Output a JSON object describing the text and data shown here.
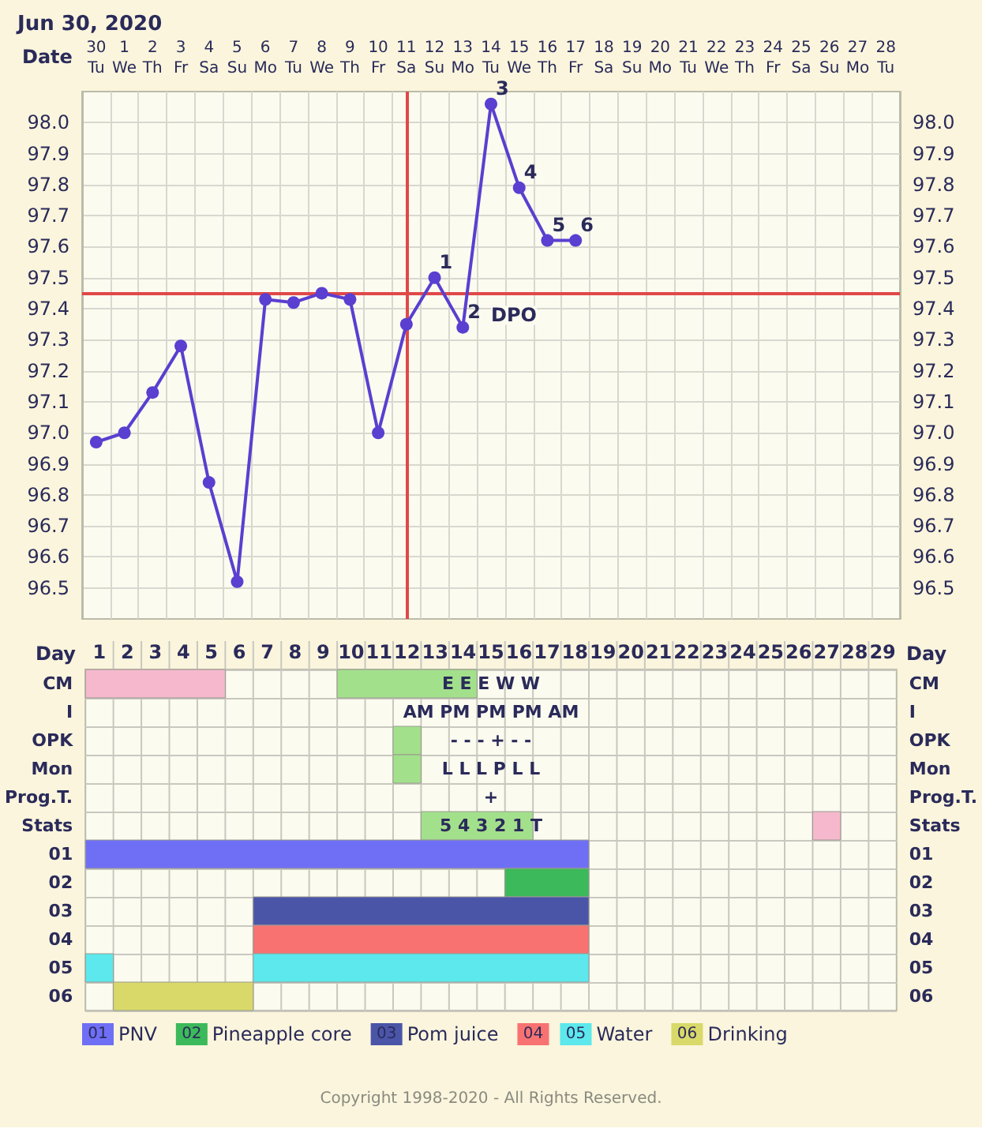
{
  "chart_data": [
    {
      "type": "line",
      "title": "Jun 30, 2020",
      "xlabel": "Date",
      "categories": [
        "30\nTu",
        "1\nWe",
        "2\nTh",
        "3\nFr",
        "4\nSa",
        "5\nSu",
        "6\nMo",
        "7\nTu",
        "8\nWe",
        "9\nTh",
        "10\nFr",
        "11\nSa",
        "12\nSu",
        "13\nMo",
        "14\nTu",
        "15\nWe",
        "16\nTh",
        "17\nFr",
        "18\nSa",
        "19\nSu",
        "20\nMo",
        "21\nTu",
        "22\nWe",
        "23\nTh",
        "24\nFr",
        "25\nSa",
        "26\nSu",
        "27\nMo",
        "28\nTu"
      ],
      "values": [
        96.97,
        97.0,
        97.13,
        97.28,
        96.84,
        96.52,
        97.43,
        97.42,
        97.45,
        97.43,
        97.0,
        97.35,
        97.5,
        97.34,
        98.06,
        97.79,
        97.62,
        97.62,
        null,
        null,
        null,
        null,
        null,
        null,
        null,
        null,
        null,
        null,
        null
      ],
      "color": "#5a3fd0",
      "marker": "circle",
      "line_style": "solid",
      "ylim": [
        96.4,
        98.1
      ],
      "yticks": [
        96.5,
        96.6,
        96.7,
        96.8,
        96.9,
        {
          "value": 97.0,
          "label": "97.0"
        },
        97.1,
        97.2,
        97.3,
        97.4,
        97.5,
        97.6,
        97.7,
        97.8,
        97.9,
        {
          "value": 98.0,
          "label": "98.0"
        }
      ],
      "y2lim": [
        96.4,
        98.1
      ],
      "y2ticks": [
        96.5,
        96.6,
        96.7,
        96.8,
        96.9,
        {
          "value": 97.0,
          "label": "97.0"
        },
        97.1,
        97.2,
        97.3,
        97.4,
        97.5,
        97.6,
        97.7,
        97.8,
        97.9,
        {
          "value": 98.0,
          "label": "98.0"
        }
      ],
      "grid": true,
      "legend": false,
      "ref_lines": [
        {
          "axis": "x",
          "value": "11\nSa",
          "color": "#e04848"
        },
        {
          "axis": "y",
          "value": 97.45,
          "color": "#e04848"
        }
      ],
      "annotations": [
        {
          "text": "1",
          "x": "12\nSu",
          "y": 97.5
        },
        {
          "text": "2",
          "x": "13\nMo",
          "y": 97.34
        },
        {
          "text": "3",
          "x": "14\nTu",
          "y": 98.06
        },
        {
          "text": "4",
          "x": "15\nWe",
          "y": 97.79
        },
        {
          "text": "5",
          "x": "16\nTh",
          "y": 97.62
        },
        {
          "text": "6",
          "x": "17\nFr",
          "y": 97.62
        },
        "DPO"
      ]
    },
    {
      "type": "bar",
      "orientation": "horizontal",
      "xlabel": "Day",
      "categories": [
        "CM",
        "I",
        "OPK",
        "Mon",
        "Prog.T.",
        "Stats",
        "01",
        "02",
        "03",
        "04",
        "05",
        "06"
      ],
      "y2_categories": [
        "CM",
        "I",
        "OPK",
        "Mon",
        "Prog.T.",
        "Stats",
        "01",
        "02",
        "03",
        "04",
        "05",
        "06"
      ],
      "xlim": [
        0.5,
        29.5
      ],
      "xticks": [
        1,
        2,
        3,
        4,
        5,
        6,
        7,
        8,
        9,
        10,
        11,
        12,
        13,
        14,
        15,
        16,
        17,
        18,
        19,
        20,
        21,
        22,
        23,
        24,
        25,
        26,
        27,
        28,
        29
      ],
      "grid": true,
      "legend": "bottom",
      "series": [
        {
          "color": "#f5b8cc",
          "base": [
            0.5,
            null,
            null,
            null,
            null,
            26.5,
            null,
            null,
            null,
            null,
            null,
            null
          ],
          "values": [
            5,
            null,
            null,
            null,
            null,
            1,
            null,
            null,
            null,
            null,
            null,
            null
          ]
        },
        {
          "color": "#a3e08c",
          "base": [
            9.5,
            null,
            11.5,
            11.5,
            null,
            12.5,
            null,
            null,
            null,
            null,
            null,
            null
          ],
          "values": [
            5,
            null,
            1,
            1,
            null,
            4,
            null,
            null,
            null,
            null,
            null,
            null
          ]
        },
        {
          "name": "PNV",
          "color": "#6f6ff5",
          "base": [
            null,
            null,
            null,
            null,
            null,
            null,
            0.5,
            null,
            null,
            null,
            null,
            null
          ],
          "values": [
            null,
            null,
            null,
            null,
            null,
            null,
            18,
            null,
            null,
            null,
            null,
            null
          ]
        },
        {
          "name": "Pineapple core",
          "color": "#3cb95a",
          "base": [
            null,
            null,
            null,
            null,
            null,
            null,
            null,
            15.5,
            null,
            null,
            null,
            null
          ],
          "values": [
            null,
            null,
            null,
            null,
            null,
            null,
            null,
            3,
            null,
            null,
            null,
            null
          ]
        },
        {
          "name": "Pom juice",
          "color": "#4b55a8",
          "base": [
            null,
            null,
            null,
            null,
            null,
            null,
            null,
            null,
            6.5,
            null,
            null,
            null
          ],
          "values": [
            null,
            null,
            null,
            null,
            null,
            null,
            null,
            null,
            12,
            null,
            null,
            null
          ]
        },
        {
          "name": null,
          "color": "#f87272",
          "base": [
            null,
            null,
            null,
            null,
            null,
            null,
            null,
            null,
            null,
            6.5,
            null,
            null
          ],
          "values": [
            null,
            null,
            null,
            null,
            null,
            null,
            null,
            null,
            null,
            12,
            null,
            null
          ]
        },
        {
          "name": "Water",
          "color": "#5ce8ec",
          "base": [
            null,
            null,
            null,
            null,
            null,
            null,
            null,
            null,
            null,
            null,
            0.5,
            null
          ],
          "values": [
            null,
            null,
            null,
            null,
            null,
            null,
            null,
            null,
            null,
            null,
            1,
            null
          ]
        },
        {
          "color": "#5ce8ec",
          "base": [
            null,
            null,
            null,
            null,
            null,
            null,
            null,
            null,
            null,
            null,
            6.5,
            null
          ],
          "values": [
            null,
            null,
            null,
            null,
            null,
            null,
            null,
            null,
            null,
            null,
            12,
            null
          ]
        },
        {
          "name": "Drinking",
          "color": "#d9d96a",
          "base": [
            null,
            null,
            null,
            null,
            null,
            null,
            null,
            null,
            null,
            null,
            null,
            1.5
          ],
          "values": [
            null,
            null,
            null,
            null,
            null,
            null,
            null,
            null,
            null,
            null,
            null,
            5
          ]
        }
      ],
      "annotations": [
        "E E E W W",
        "AM PM PM PM AM",
        "- - - + - -",
        "L L L P L L",
        "+",
        "5 4 3 2 1 T",
        "Copyright 1998-2020 - All Rights Reserved."
      ]
    }
  ]
}
